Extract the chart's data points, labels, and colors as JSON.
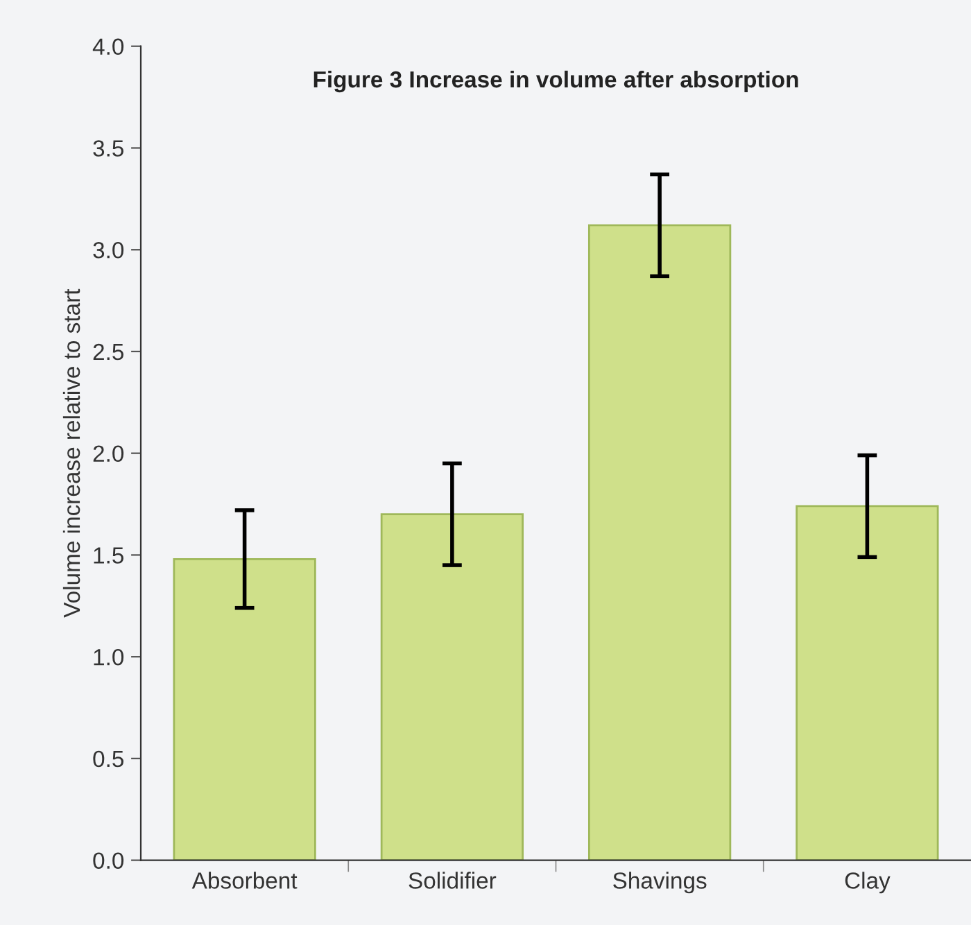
{
  "chart_data": {
    "type": "bar",
    "title": "Figure 3 Increase in volume after absorption",
    "ylabel": "Volume increase relative to start",
    "categories": [
      "Absorbent",
      "Solidifier",
      "Shavings",
      "Clay"
    ],
    "values": [
      1.48,
      1.7,
      3.12,
      1.74
    ],
    "errors": [
      0.24,
      0.25,
      0.25,
      0.25
    ],
    "color": "#cfe08a",
    "ylim": [
      0,
      4
    ],
    "yticks": [
      {
        "value": 0,
        "label": "0.0"
      },
      {
        "value": 0.5,
        "label": "0.5"
      },
      {
        "value": 1,
        "label": "1.0"
      },
      {
        "value": 1.5,
        "label": "1.5"
      },
      {
        "value": 2,
        "label": "2.0"
      },
      {
        "value": 2.5,
        "label": "2.5"
      },
      {
        "value": 3,
        "label": "3.0"
      },
      {
        "value": 3.5,
        "label": "3.5"
      },
      {
        "value": 4,
        "label": "4.0"
      }
    ],
    "grid": false,
    "legend": false
  }
}
